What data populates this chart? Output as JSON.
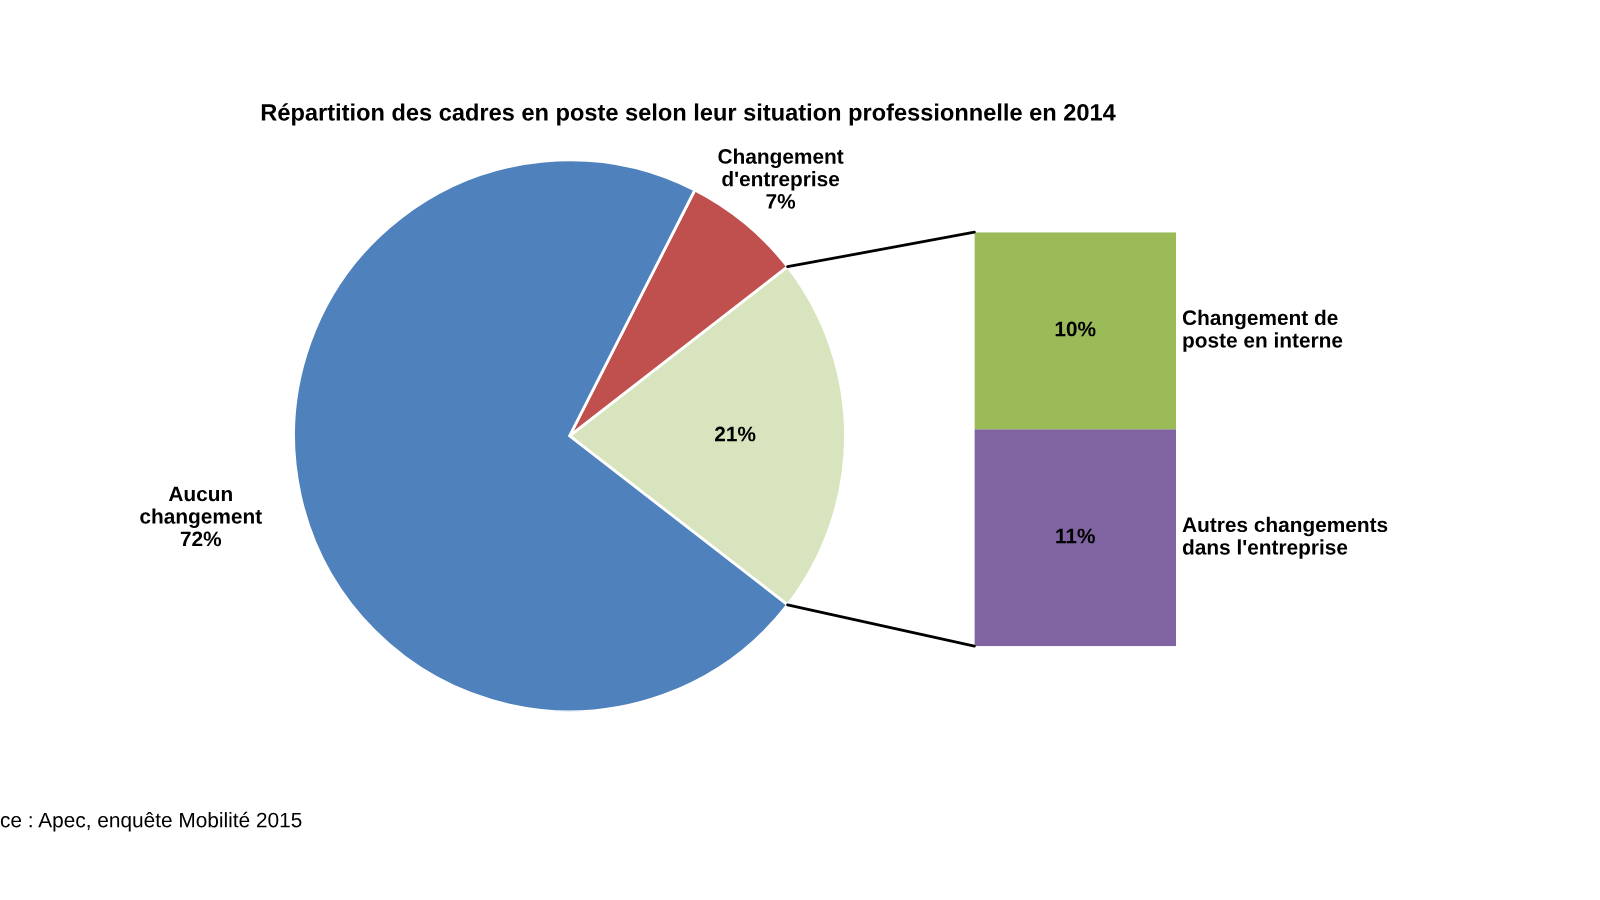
{
  "chart_data": [
    {
      "type": "pie",
      "title": "Répartition des cadres en poste selon leur situation professionnelle en 2014",
      "categories": [
        "Aucun changement",
        "Changement d'entreprise",
        null
      ],
      "values": [
        72,
        7,
        21
      ],
      "value_labels": [
        "72%",
        "7%",
        "21%"
      ],
      "colors": [
        "#4f81bd",
        "#c0504d",
        "#d7e4bd"
      ],
      "annotations": [
        "ce : Apec, enquête Mobilité 2015"
      ]
    },
    {
      "type": "bar",
      "stacked": true,
      "categories": [
        null
      ],
      "series": [
        {
          "name": "Autres changements dans l'entreprise",
          "color": "#8064a2",
          "values": [
            11
          ],
          "value_labels": [
            "11%"
          ]
        },
        {
          "name": "Changement de poste en interne",
          "color": "#9bbb59",
          "values": [
            10
          ],
          "value_labels": [
            "10%"
          ]
        }
      ]
    }
  ]
}
